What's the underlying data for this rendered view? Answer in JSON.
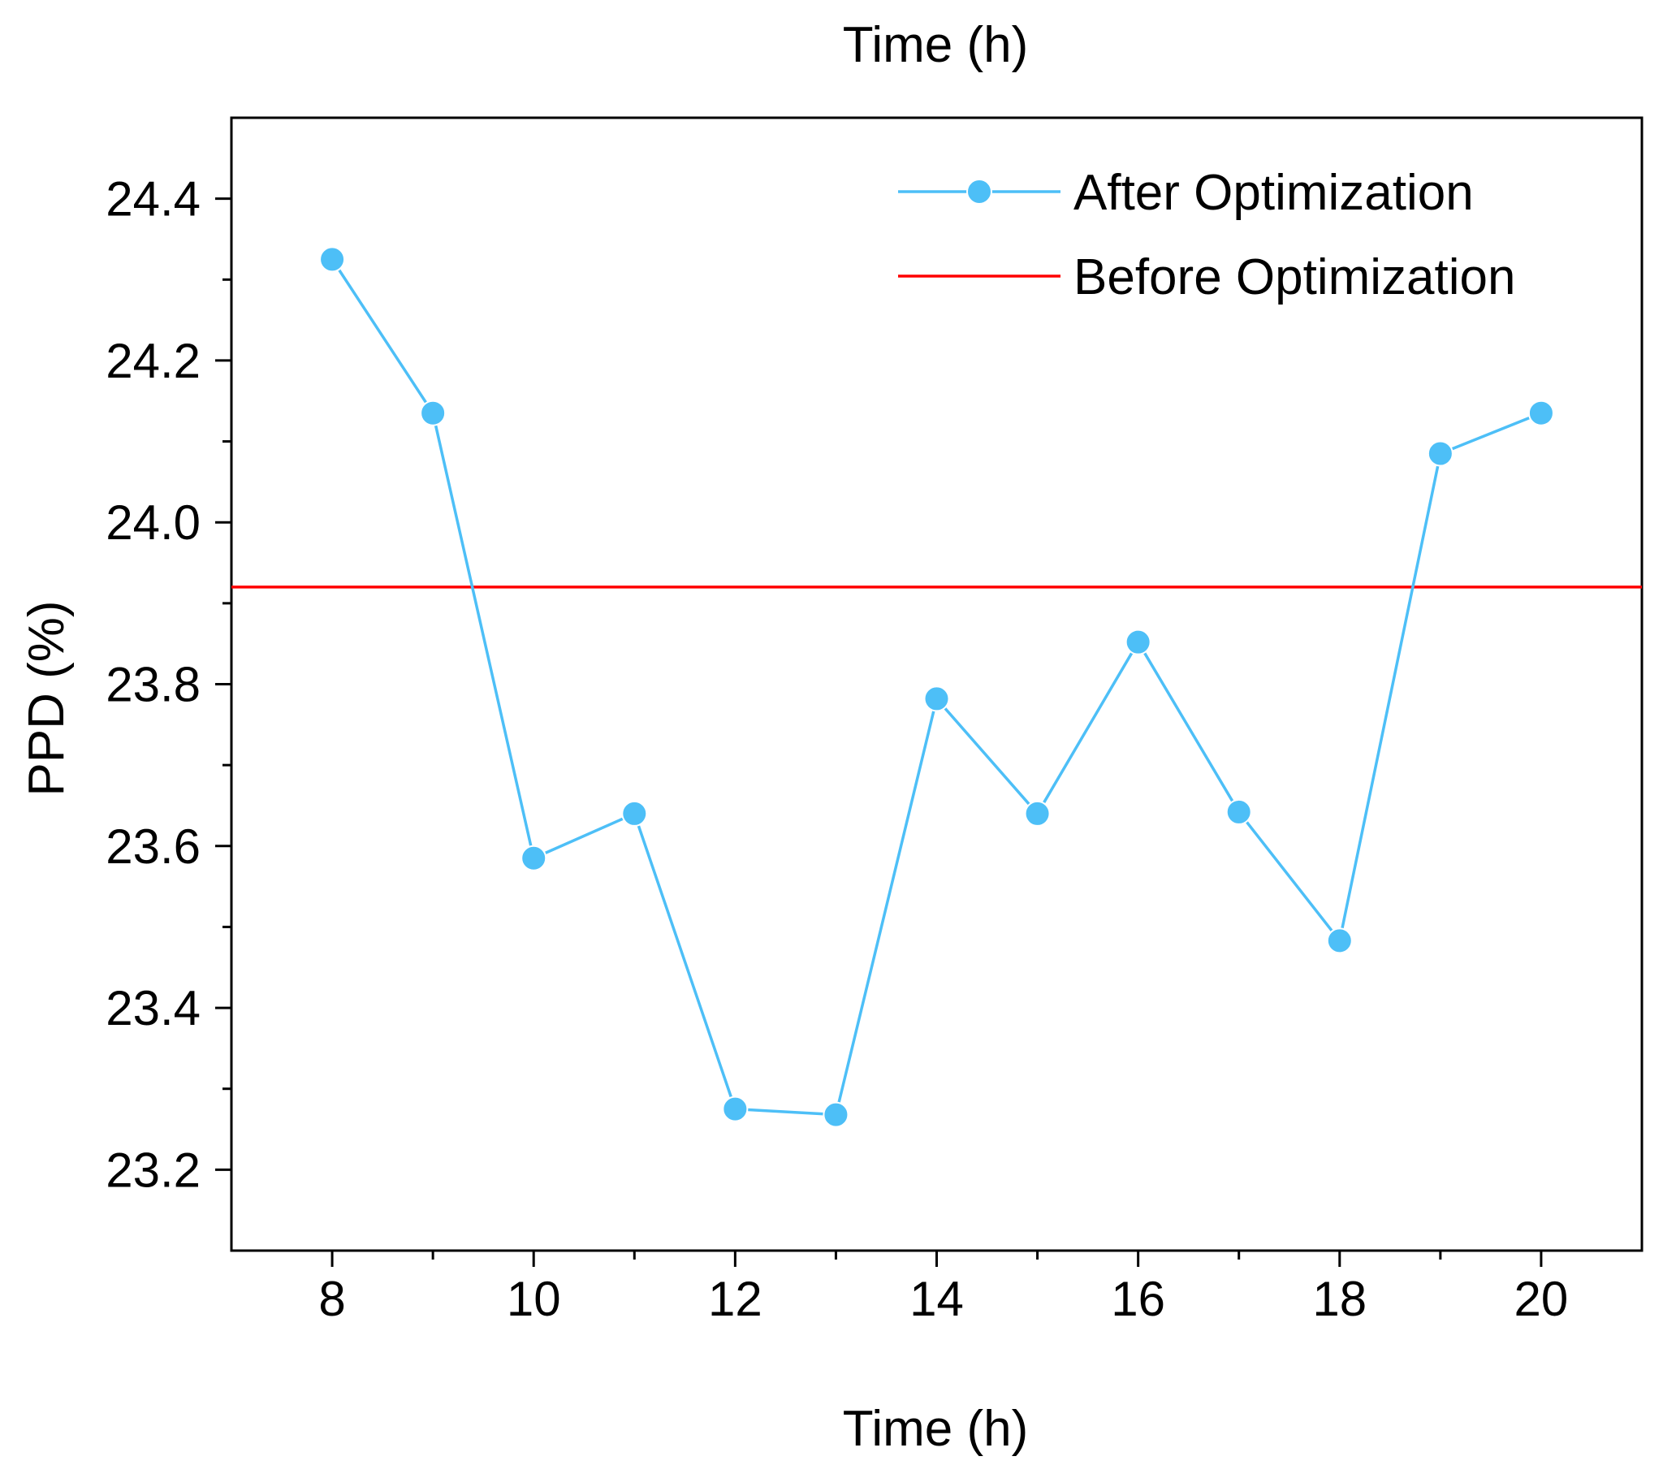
{
  "chart_data": {
    "type": "line",
    "title": "Time (h)",
    "xlabel": "Time (h)",
    "ylabel": "PPD (%)",
    "xlim": [
      7,
      21
    ],
    "ylim": [
      23.1,
      24.5
    ],
    "x_ticks": [
      8,
      10,
      12,
      14,
      16,
      18,
      20
    ],
    "x_tick_labels": [
      "8",
      "10",
      "12",
      "14",
      "16",
      "18",
      "20"
    ],
    "y_ticks": [
      23.2,
      23.4,
      23.6,
      23.8,
      24.0,
      24.2,
      24.4
    ],
    "y_tick_labels": [
      "23.2",
      "23.4",
      "23.6",
      "23.8",
      "24.0",
      "24.2",
      "24.4"
    ],
    "grid": false,
    "legend_position": "top-right",
    "series": [
      {
        "name": "After Optimization",
        "color": "#4dbff7",
        "marker": "circle",
        "x": [
          8,
          9,
          10,
          11,
          12,
          13,
          14,
          15,
          16,
          17,
          18,
          19,
          20
        ],
        "values": [
          24.325,
          24.135,
          23.585,
          23.64,
          23.275,
          23.268,
          23.782,
          23.64,
          23.852,
          23.642,
          23.483,
          24.085,
          24.135
        ]
      },
      {
        "name": "Before Optimization",
        "color": "#ff0000",
        "marker": "none",
        "constant": 23.92
      }
    ]
  }
}
